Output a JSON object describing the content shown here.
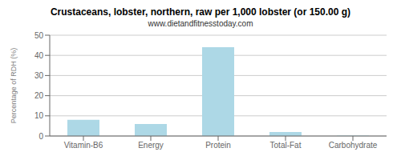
{
  "chart_data": {
    "type": "bar",
    "title": "Crustaceans, lobster, northern, raw per 1,000 lobster (or 150.00 g)",
    "subtitle": "www.dietandfitnesstoday.com",
    "categories": [
      "Vitamin-B6",
      "Energy",
      "Protein",
      "Total-Fat",
      "Carbohydrate"
    ],
    "values": [
      8,
      6,
      44,
      2,
      0.2
    ],
    "color": "#add8e6",
    "ylabel": "Percentage of RDH (%)",
    "ylim": [
      0,
      50
    ],
    "yticks": [
      0,
      10,
      20,
      30,
      40,
      50
    ],
    "grid": true
  }
}
